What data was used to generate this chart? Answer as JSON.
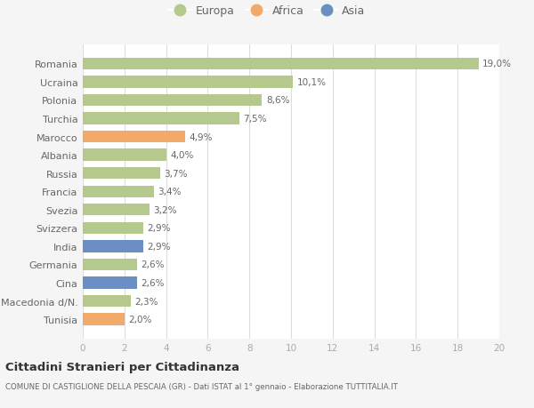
{
  "categories": [
    "Romania",
    "Ucraina",
    "Polonia",
    "Turchia",
    "Marocco",
    "Albania",
    "Russia",
    "Francia",
    "Svezia",
    "Svizzera",
    "India",
    "Germania",
    "Cina",
    "Macedonia d/N.",
    "Tunisia"
  ],
  "values": [
    19.0,
    10.1,
    8.6,
    7.5,
    4.9,
    4.0,
    3.7,
    3.4,
    3.2,
    2.9,
    2.9,
    2.6,
    2.6,
    2.3,
    2.0
  ],
  "labels": [
    "19,0%",
    "10,1%",
    "8,6%",
    "7,5%",
    "4,9%",
    "4,0%",
    "3,7%",
    "3,4%",
    "3,2%",
    "2,9%",
    "2,9%",
    "2,6%",
    "2,6%",
    "2,3%",
    "2,0%"
  ],
  "continent": [
    "Europa",
    "Europa",
    "Europa",
    "Europa",
    "Africa",
    "Europa",
    "Europa",
    "Europa",
    "Europa",
    "Europa",
    "Asia",
    "Europa",
    "Asia",
    "Europa",
    "Africa"
  ],
  "colors": {
    "Europa": "#b5c98e",
    "Africa": "#f2a96a",
    "Asia": "#6b8ec4"
  },
  "legend_items": [
    "Europa",
    "Africa",
    "Asia"
  ],
  "title1": "Cittadini Stranieri per Cittadinanza",
  "title2": "COMUNE DI CASTIGLIONE DELLA PESCAIA (GR) - Dati ISTAT al 1° gennaio - Elaborazione TUTTITALIA.IT",
  "xlim": [
    0,
    20
  ],
  "xticks": [
    0,
    2,
    4,
    6,
    8,
    10,
    12,
    14,
    16,
    18,
    20
  ],
  "background_color": "#f5f5f5",
  "plot_background": "#ffffff"
}
